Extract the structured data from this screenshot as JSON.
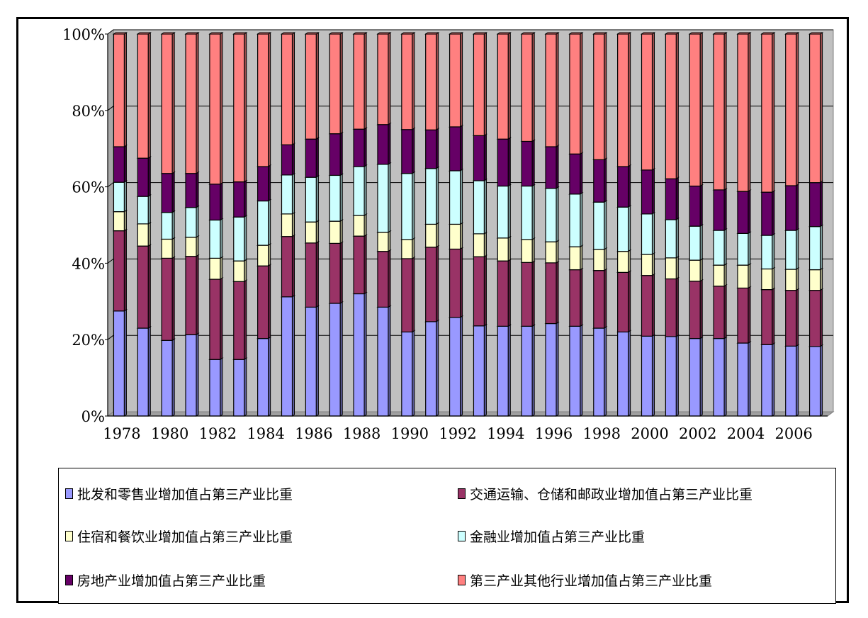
{
  "chart_data": {
    "type": "bar",
    "stacked": true,
    "percent": true,
    "title": "",
    "xlabel": "",
    "ylabel": "",
    "ylim": [
      0,
      100
    ],
    "grid": true,
    "legend_position": "bottom",
    "y_ticks": [
      "0%",
      "20%",
      "40%",
      "60%",
      "80%",
      "100%"
    ],
    "x_tick_labels": [
      "1978",
      "1980",
      "1982",
      "1984",
      "1986",
      "1988",
      "1990",
      "1992",
      "1994",
      "1996",
      "1998",
      "2000",
      "2002",
      "2004",
      "2006"
    ],
    "categories": [
      "1978",
      "1979",
      "1980",
      "1981",
      "1982",
      "1983",
      "1984",
      "1985",
      "1986",
      "1987",
      "1988",
      "1989",
      "1990",
      "1991",
      "1992",
      "1993",
      "1994",
      "1995",
      "1996",
      "1997",
      "1998",
      "1999",
      "2000",
      "2001",
      "2002",
      "2003",
      "2004",
      "2005",
      "2006",
      "2007"
    ],
    "series": [
      {
        "name": "批发和零售业增加值占第三产业比重",
        "color": "#9999ff",
        "values": [
          27.5,
          23,
          19.8,
          21.3,
          14.8,
          14.8,
          20.3,
          31.2,
          28.5,
          29.5,
          32,
          28.5,
          22,
          24.7,
          25.8,
          23.6,
          23.5,
          23.5,
          24.2,
          23.5,
          23,
          22,
          20.9,
          20.8,
          20.3,
          20.3,
          19.1,
          18.7,
          18.3,
          18.2
        ]
      },
      {
        "name": "交通运输、仓储和邮政业增加值占第三产业比重",
        "color": "#993366",
        "values": [
          21,
          21.5,
          21.5,
          20.5,
          21,
          20.4,
          19,
          15.8,
          16.8,
          15.7,
          15.1,
          14.6,
          19.2,
          19.5,
          17.9,
          18.1,
          17.1,
          16.7,
          15.9,
          14.8,
          15.1,
          15.6,
          15.9,
          15.1,
          15,
          13.7,
          14.4,
          14.4,
          14.6,
          14.7
        ]
      },
      {
        "name": "住宿和餐饮业增加值占第三产业比重",
        "color": "#ffffcc",
        "values": [
          5,
          5.8,
          5,
          5,
          5.5,
          5.4,
          5.4,
          5.9,
          5.5,
          5.8,
          5.4,
          5,
          5,
          6,
          6.5,
          6,
          6,
          6,
          5.5,
          6,
          5.5,
          5.5,
          5.5,
          5.5,
          5.5,
          5.5,
          6,
          5.4,
          5.5,
          5.4
        ]
      },
      {
        "name": "金融业增加值占第三产业比重",
        "color": "#ccffff",
        "values": [
          7.7,
          7.2,
          7,
          7.8,
          10,
          11.5,
          11.6,
          10.2,
          11.7,
          12,
          12.8,
          17.8,
          17.3,
          14.6,
          14,
          13.9,
          13.6,
          14,
          14,
          13.8,
          12.4,
          11.6,
          10.6,
          10,
          8.9,
          9.1,
          8.3,
          8.8,
          10.2,
          11.3
        ]
      },
      {
        "name": "房地产业增加值占第三产业比重",
        "color": "#660066",
        "values": [
          9.3,
          10,
          10.2,
          8.9,
          9.4,
          9.2,
          9,
          7.9,
          10,
          10.9,
          9.8,
          10.4,
          11.5,
          10.1,
          11.5,
          11.8,
          12.3,
          11.7,
          10.9,
          10.5,
          11.1,
          10.6,
          11.5,
          10.7,
          10.5,
          10.6,
          11,
          11.3,
          11.7,
          11.5
        ]
      },
      {
        "name": "第三产业其他行业增加值占第三产业比重",
        "color": "#ff8080",
        "values": [
          29.5,
          32.5,
          36.5,
          36.5,
          39.3,
          38.7,
          34.7,
          29,
          27.5,
          26.1,
          24.9,
          23.7,
          25,
          25.1,
          24.3,
          26.6,
          27.5,
          28.1,
          29.5,
          31.4,
          32.9,
          34.7,
          35.6,
          37.9,
          39.8,
          40.8,
          41.2,
          41.4,
          39.7,
          38.9
        ]
      }
    ]
  }
}
